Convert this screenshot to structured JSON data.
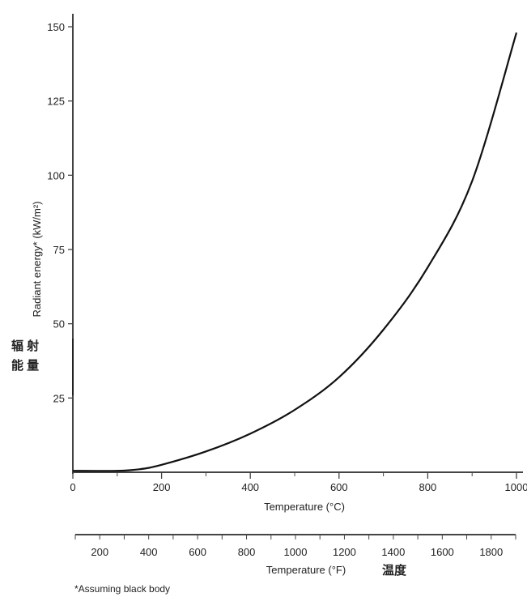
{
  "chart_data": {
    "type": "line",
    "title": "",
    "xlabel": "Temperature (°C)",
    "x2label": "Temperature (°F)",
    "x2label_annotation": "温度",
    "ylabel": "Radiant energy* (kW/m²)",
    "ylabel_annotation": [
      "辐 射",
      "能 量"
    ],
    "footnote": "*Assuming black body",
    "xlim": [
      0,
      1000
    ],
    "ylim": [
      0,
      150
    ],
    "x_ticks": [
      0,
      200,
      400,
      600,
      800,
      1000
    ],
    "y_ticks": [
      25,
      50,
      75,
      100,
      125,
      150
    ],
    "x2_ticks": [
      200,
      400,
      600,
      800,
      1000,
      1200,
      1400,
      1600,
      1800
    ],
    "x2_tick_labels": [
      "200",
      "400",
      "600",
      "800",
      "1000",
      "1200",
      "1400",
      "1600",
      "1800"
    ],
    "grid": false,
    "series": [
      {
        "x": [
          0,
          100,
          150,
          200,
          300,
          400,
          500,
          600,
          700,
          800,
          900,
          1000
        ],
        "y": [
          0.5,
          0.5,
          1,
          2.5,
          7,
          13,
          21,
          32,
          48,
          69,
          98,
          148
        ]
      }
    ]
  }
}
